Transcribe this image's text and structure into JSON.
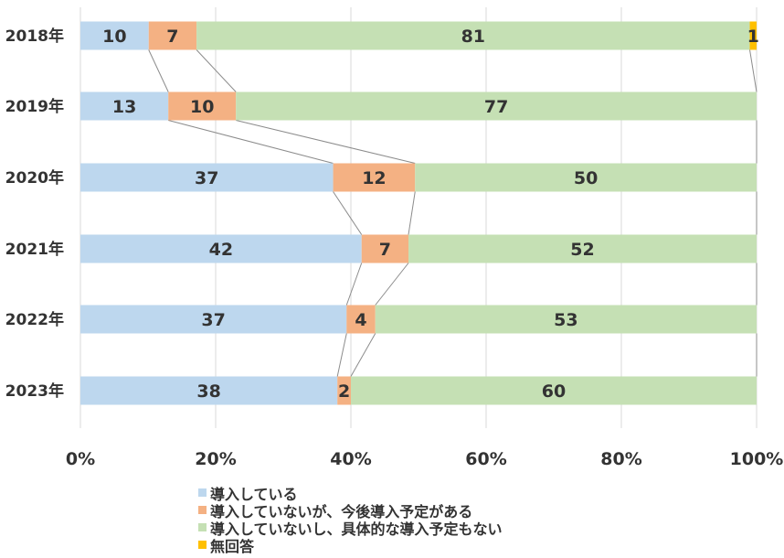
{
  "chart_data": {
    "type": "bar",
    "orientation": "horizontal",
    "stacked": "percent",
    "categories": [
      "2018年",
      "2019年",
      "2020年",
      "2021年",
      "2022年",
      "2023年"
    ],
    "series": [
      {
        "name": "導入している",
        "color": "#bdd7ee",
        "values": [
          10,
          13,
          37,
          42,
          37,
          38
        ]
      },
      {
        "name": "導入していないが、今後導入予定がある",
        "color": "#f4b183",
        "values": [
          7,
          10,
          12,
          7,
          4,
          2
        ]
      },
      {
        "name": "導入していないし、具体的な導入予定もない",
        "color": "#c5e0b4",
        "values": [
          81,
          77,
          50,
          52,
          53,
          60
        ]
      },
      {
        "name": "無回答",
        "color": "#ffc000",
        "values": [
          1,
          0,
          0,
          0,
          0,
          0
        ]
      }
    ],
    "data_labels": [
      [
        "10",
        "13",
        "37",
        "42",
        "37",
        "38"
      ],
      [
        "7",
        "10",
        "12",
        "7",
        "4",
        "2"
      ],
      [
        "81",
        "77",
        "50",
        "52",
        "53",
        "60"
      ],
      [
        "1",
        "",
        "",
        "",
        "",
        ""
      ]
    ],
    "x_ticks": [
      "0%",
      "20%",
      "40%",
      "60%",
      "80%",
      "100%"
    ],
    "xlim": [
      0,
      100
    ],
    "grid": true,
    "series_lines": true,
    "legend_position": "bottom"
  }
}
